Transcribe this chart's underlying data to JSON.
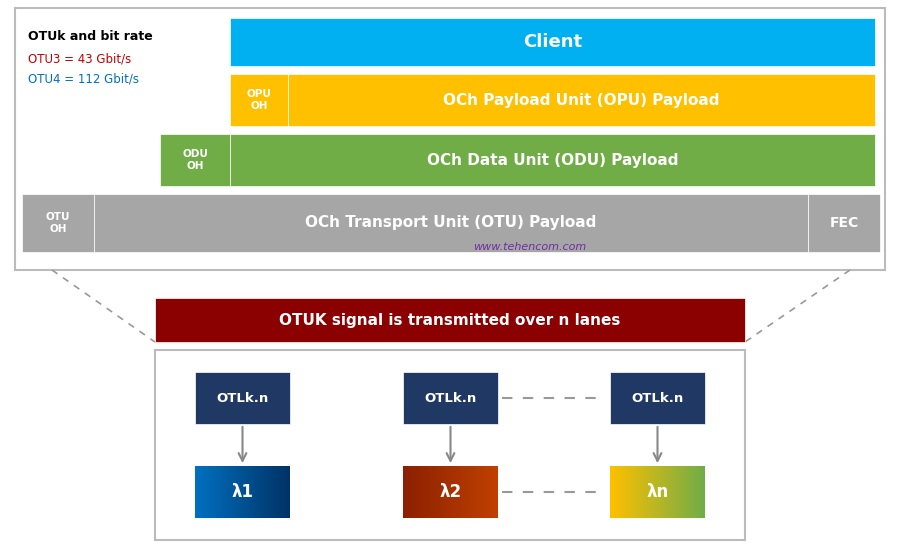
{
  "bg_color": "#ffffff",
  "top_box_border": "#bbbbbb",
  "title_text": "OTUk and bit rate",
  "title_color": "#000000",
  "otu3_text": "OTU3 = 43 Gbit/s",
  "otu3_color": "#c00000",
  "otu4_text": "OTU4 = 112 Gbit/s",
  "otu4_color": "#0070c0",
  "client_label": "Client",
  "client_color": "#00b0f0",
  "opu_oh_label": "OPU\nOH",
  "opu_oh_color": "#ffc000",
  "opu_payload_label": "OCh Payload Unit (OPU) Payload",
  "opu_payload_color": "#ffc000",
  "odu_oh_label": "ODU\nOH",
  "odu_oh_color": "#70ad47",
  "odu_payload_label": "OCh Data Unit (ODU) Payload",
  "odu_payload_color": "#70ad47",
  "otu_oh_label": "OTU\nOH",
  "otu_oh_color": "#a6a6a6",
  "otu_payload_label": "OCh Transport Unit (OTU) Payload",
  "otu_payload_color": "#a6a6a6",
  "fec_label": "FEC",
  "fec_color": "#a6a6a6",
  "red_bar_label": "OTUK signal is transmitted over n lanes",
  "red_bar_color": "#8b0000",
  "otlkn_color": "#1f3864",
  "otlkn_label": "OTLk.n",
  "lambda1_label": "λ1",
  "lambda2_label": "λ2",
  "lambdan_label": "λn",
  "lambda1_color_left": "#0070c0",
  "lambda1_color_right": "#003366",
  "lambda2_color_left": "#8b2000",
  "lambda2_color_right": "#c04000",
  "lambdan_color_left": "#ffc000",
  "lambdan_color_right": "#70ad47",
  "watermark": "www.tehencom.com",
  "watermark_color": "#7030a0"
}
